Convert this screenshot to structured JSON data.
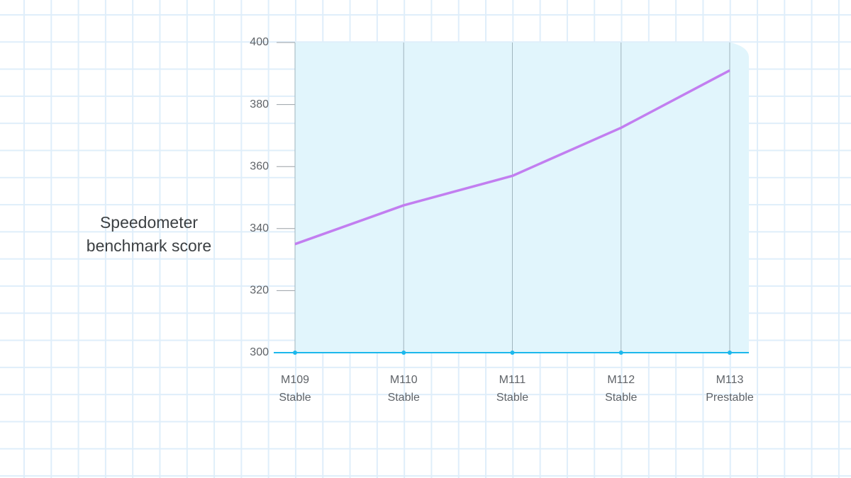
{
  "chart_data": {
    "type": "line",
    "y_label": "Speedometer benchmark score",
    "categories": [
      [
        "M109",
        "Stable"
      ],
      [
        "M110",
        "Stable"
      ],
      [
        "M111",
        "Stable"
      ],
      [
        "M112",
        "Stable"
      ],
      [
        "M113",
        "Prestable"
      ]
    ],
    "series": [
      {
        "color": "#c27ef0",
        "values": [
          335,
          347.5,
          357,
          372.5,
          391
        ]
      }
    ],
    "ylim": [
      300,
      400
    ],
    "yticks": [
      300,
      320,
      340,
      360,
      380,
      400
    ],
    "grid": true,
    "fill_color": "#e1f5fc",
    "axis_color": "#1cb8ec"
  }
}
